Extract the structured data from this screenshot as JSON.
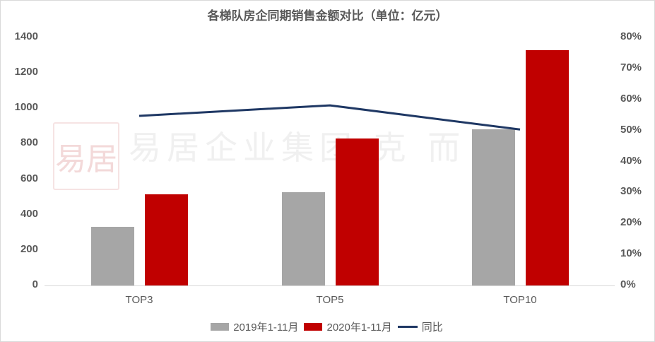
{
  "chart_data": {
    "type": "bar",
    "title": "各梯队房企同期销售金额对比（单位：亿元）",
    "categories": [
      "TOP3",
      "TOP5",
      "TOP10"
    ],
    "series": [
      {
        "name": "2019年1-11月",
        "type": "bar",
        "axis": "left",
        "color": "#a6a6a6",
        "values": [
          331,
          527,
          881
        ]
      },
      {
        "name": "2020年1-11月",
        "type": "bar",
        "axis": "left",
        "color": "#c00000",
        "values": [
          515,
          830,
          1328
        ]
      },
      {
        "name": "同比",
        "type": "line",
        "axis": "right",
        "color": "#1f3864",
        "values": [
          0.547,
          0.581,
          0.503
        ]
      }
    ],
    "xlabel": "",
    "ylabel": "",
    "ylim": [
      0,
      1400
    ],
    "y_ticks": [
      "0",
      "200",
      "400",
      "600",
      "800",
      "1000",
      "1200",
      "1400"
    ],
    "y2lim": [
      0,
      0.8
    ],
    "y2_ticks": [
      "0%",
      "10%",
      "20%",
      "30%",
      "40%",
      "50%",
      "60%",
      "70%",
      "80%"
    ],
    "grid": false,
    "legend_position": "bottom"
  },
  "title": "各梯队房企同期销售金额对比（单位：亿元）",
  "watermark": {
    "seal": "易居",
    "text": "易居企业集团·克 而 瑞"
  },
  "legend": [
    {
      "label": "2019年1-11月",
      "color": "#a6a6a6",
      "kind": "box"
    },
    {
      "label": "2020年1-11月",
      "color": "#c00000",
      "kind": "box"
    },
    {
      "label": "同比",
      "color": "#1f3864",
      "kind": "line"
    }
  ]
}
